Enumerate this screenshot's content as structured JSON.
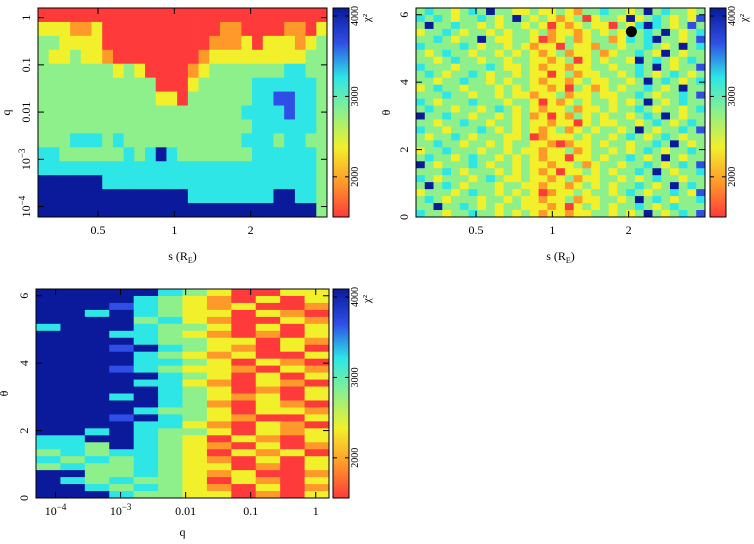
{
  "chart_data": [
    {
      "type": "heatmap",
      "id": "q_vs_s",
      "xlabel": "s (R_E)",
      "ylabel": "q",
      "xscale": "log",
      "yscale": "log",
      "xlim": [
        0.29,
        4.0
      ],
      "ylim": [
        6e-05,
        1.6
      ],
      "x_ticks": [
        {
          "v": 0.5,
          "label": "0.5"
        },
        {
          "v": 1,
          "label": "1"
        },
        {
          "v": 2,
          "label": "2"
        }
      ],
      "y_ticks": [
        {
          "v": 0.0001,
          "label": "10^-4"
        },
        {
          "v": 0.001,
          "label": "10^-3"
        },
        {
          "v": 0.01,
          "label": "0.01"
        },
        {
          "v": 0.1,
          "label": "0.1"
        },
        {
          "v": 1,
          "label": "1"
        }
      ],
      "colorbar": {
        "label": "χ²",
        "range": [
          1500,
          4100
        ],
        "ticks": [
          2000,
          3000,
          4000
        ],
        "position": "right"
      },
      "rows_top_to_bottom": [
        "RRRRRRRRRRRRRRRRRRRRRRRRRRR",
        "YYYOOYRRRRRRRRRRROORRRROORY",
        "GGYYYYRRRRRRRRRROOOYRYYYOYG",
        "GYYGYYORRRRRRRROYYYYYYYYYGG",
        "GGGGGGGYGYRRRROYGGGGGGGCCGG",
        "GGGGGGGGGGGRRRYGGGGGCCCCCCG",
        "GGGGGGGGGGGYYRGGGGGGCCBBCCG",
        "GGGGGGGGGGGGGGGGGGGCCCCBCCG",
        "GGGGGGGGGGGGGGGGGGGGCCCCCCG",
        "GGGCCCGCGGGGGGGGGGGCCCGCCGG",
        "CCGGGGGGCGCNCGGGGGGGCCCCCCG",
        "CCCCCCCCCCCCCCCCCCCCCCCCCCG",
        "NNNNNNCCCCCCCCCCCCCCCCCCCCG",
        "NNNNNNNNNNNNNNCCCCCCCCNNCCG",
        "NNNNNNNNNNNNNNNNNNNNNNNNNNG"
      ]
    },
    {
      "type": "heatmap",
      "id": "theta_vs_s",
      "xlabel": "s (R_E)",
      "ylabel": "θ",
      "xscale": "log",
      "yscale": "linear",
      "xlim": [
        0.29,
        4.0
      ],
      "ylim": [
        0,
        6.2
      ],
      "x_ticks": [
        {
          "v": 0.5,
          "label": "0.5"
        },
        {
          "v": 1,
          "label": "1"
        },
        {
          "v": 2,
          "label": "2"
        }
      ],
      "y_ticks": [
        {
          "v": 0,
          "label": "0"
        },
        {
          "v": 2,
          "label": "2"
        },
        {
          "v": 4,
          "label": "4"
        },
        {
          "v": 6,
          "label": "6"
        }
      ],
      "marker": {
        "x": 2.05,
        "y": 5.5,
        "shape": "filled-circle"
      },
      "colorbar": {
        "label": "χ²",
        "range": [
          1500,
          4100
        ],
        "ticks": [
          2000,
          3000,
          4000
        ],
        "position": "right"
      },
      "rows_top_to_bottom": [
        "GCGGYGCGNGGYYGYYGYOGGCGGYGNGCGGYG",
        "CGCGYGGCGYGNGYGYOYGRYGGYNYGCGYGYB",
        "GNGGCGGYGYGGYGYRYOYGYYRGYCNCGYGBG",
        "YGGCGYGGYGYGGYGOYYOYGYGYYGCGNGYGC",
        "GGCGYGGNGYYGGYROYGOYGGOYCGCNGGYGB",
        "CGGGGCGYGGYGYOYYRGYYOGGYGGCGYGNGC",
        "GYGCGGYGGYGYGYOYGOYYGOYGGCGYNGYGG",
        "GGYGCGGYGGYGGYYOYGRYGYGGYNGCGYGCG",
        "CGGGYGGGCGYYGYOYYOYYGGYGGCGNGYGGB",
        "GCGYGGCGYGGYGYYRYGOYYGGYGCGYGCGYG",
        "GGYGGCGGYGYGGYOYYOYGYYGGYGNGCGYGC",
        "YGCGGYGGGYGYGYYOYRGYOYGYGGCGYGNGG",
        "GGGCGGYGGYGYYOYYGOYYGYYGGCGYGGCGB",
        "CGYGGGCGGGYGGYRYOYGYGGYGYGNGYGCGG",
        "GCGGYGGYGCGYGYOYYGOYYGYGGCGYGGYGC",
        "NGGCGGYGGYGYGOYRYOGYGYGGYGCGNGYGG",
        "GGYGGCGGYGGYGYYOYYRYGYYGGYGCGYGCG",
        "CGGYGGGCGYGYGYOYGOYGYGGYGNGYGGCGB",
        "GYGGCGYGGGYYGROYYYGYGGYGCGYGCGYGG",
        "GGCGGYGGYGYGGYYOROYYGYGGYGGCGNGYG",
        "YGGCGGGYGGYGYYOYYGOYGGYGYGCGYGGCG",
        "GCGGYGCGGYGYGYOYYRYYGYGGCGYGNGYGG",
        "NGYGGGCGYGGYGYYOYYGOYGGYGGCGYGCGB",
        "GGGCGYGGGYGYGYOYRYYGYGYGGCGNGYGGC",
        "CGYGGGYGCGYYGYYOYGOYYGGYGYGCGGYGG",
        "GNGCGYGGGYGGYYOYYOYGYGYGGCGYGNGCG",
        "YGGGYGCGGYGYGYROYYGYGGYGCGYGGCGYB",
        "GCGYGGGYGGYGYYOYYGOYYGGYGNGCGYGGC",
        "GGNGGCGYGYGGYYYOYRYGYGYGGCGYGCGGG",
        "CGGYGGCGGYGYGYOYYOYYGGYGYGNGYGCGB"
      ]
    },
    {
      "type": "heatmap",
      "id": "theta_vs_q",
      "xlabel": "q",
      "ylabel": "θ",
      "xscale": "log",
      "yscale": "linear",
      "xlim": [
        5e-05,
        1.6
      ],
      "ylim": [
        0,
        6.2
      ],
      "x_ticks": [
        {
          "v": 0.0001,
          "label": "10^-4"
        },
        {
          "v": 0.001,
          "label": "10^-3"
        },
        {
          "v": 0.01,
          "label": "0.01"
        },
        {
          "v": 0.1,
          "label": "0.1"
        },
        {
          "v": 1,
          "label": "1"
        }
      ],
      "y_ticks": [
        {
          "v": 0,
          "label": "0"
        },
        {
          "v": 2,
          "label": "2"
        },
        {
          "v": 4,
          "label": "4"
        },
        {
          "v": 6,
          "label": "6"
        }
      ],
      "colorbar": {
        "label": "χ²",
        "range": [
          1500,
          4100
        ],
        "ticks": [
          2000,
          3000,
          4000
        ],
        "position": "right"
      },
      "rows_top_to_bottom": [
        "NNNNNCGYRRYY",
        "NNNNCGYORYRY",
        "NNNBCGYOYRRO",
        "NNCNCGYYRYOR",
        "NNNNGCYORRYO",
        "CNNNCGGYRYRY",
        "NNNCCGYORORY",
        "NNNNCGGYYRYO",
        "NNNBNCGYORYR",
        "NNNNCGYOYRRY",
        "NNNNCCGYRYOR",
        "NNNBCGYYORYO",
        "NNNNNCGYRYRY",
        "NNNNCCYORYOR",
        "NNNNNCGYRORY",
        "NNNCNCGYOYRY",
        "NNNNNCGORYOR",
        "NNNNCGGYRYYO",
        "NNNBNCGYORRY",
        "NNNNCCYORYOR",
        "NNCNCGGYRYOY",
        "CCNNCGYRYORY",
        "CCGNCGYORYRO",
        "GCGCCGYRYOYR",
        "CGCGCGYORYRY",
        "GCGGCGYYRORY",
        "NNGGCGYOYRRO",
        "NCGCGGYRYORY",
        "NNCGCGYORYRO",
        "NNNCGGYYRORY"
      ]
    }
  ],
  "palette": {
    "N": "#0a1a9a",
    "B": "#2f4ee6",
    "C": "#2ee6e6",
    "G": "#8ef08a",
    "Y": "#f2f02a",
    "O": "#ff9a2a",
    "R": "#ff3a3a"
  }
}
